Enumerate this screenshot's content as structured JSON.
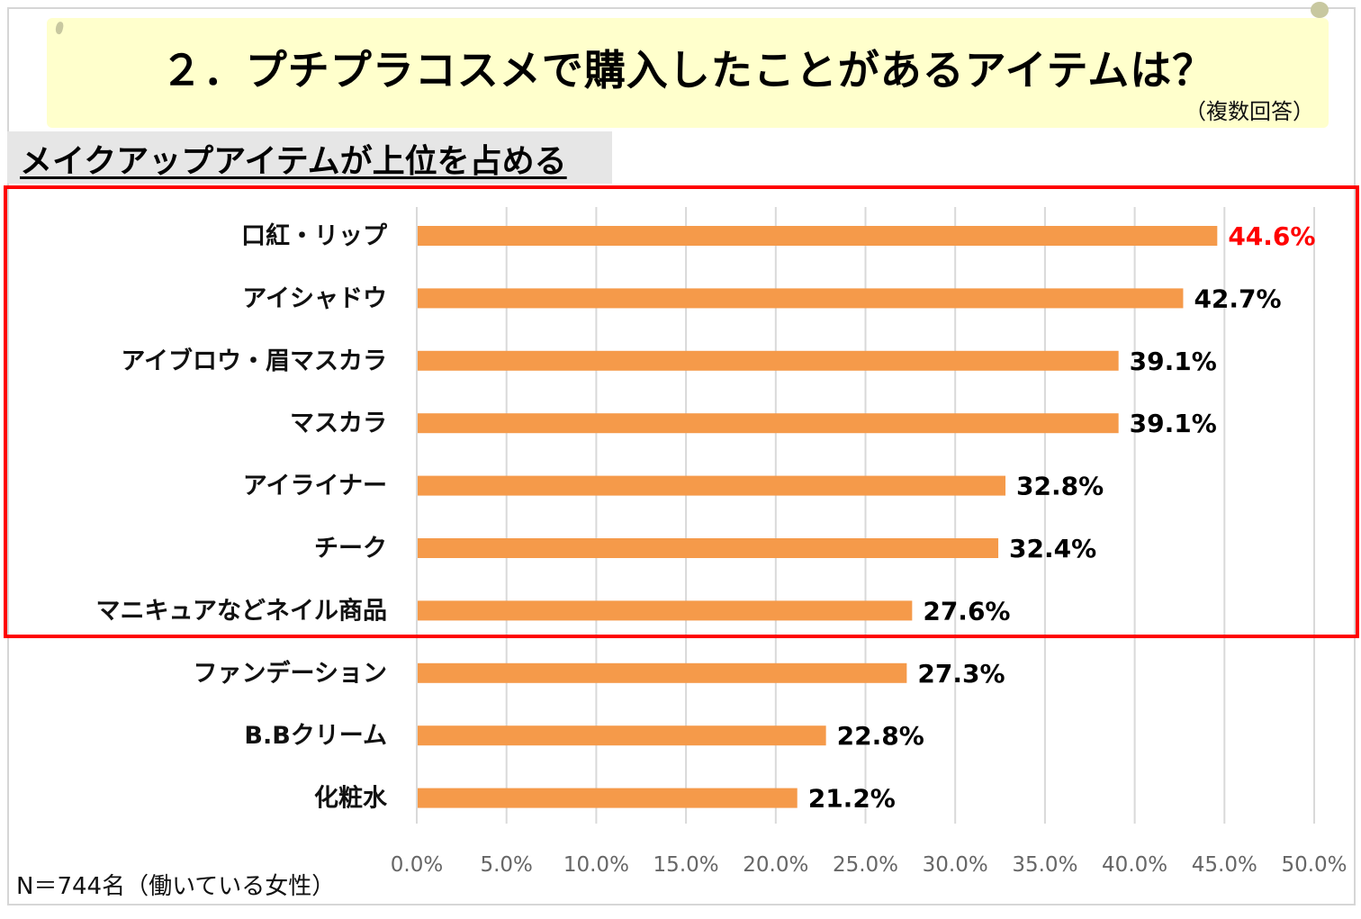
{
  "header": {
    "title": "２．プチプラコスメで購入したことがあるアイテムは？",
    "note": "（複数回答）"
  },
  "subtitle": "メイクアップアイテムが上位を占める",
  "footnote": "N＝744名（働いている女性）",
  "colors": {
    "bar": "#f59a4a",
    "highlight_label": "#ff0000",
    "highlight_box": "#ff0000",
    "grid": "#d9d9d9",
    "banner": "#ffffcc"
  },
  "chart_data": {
    "type": "bar",
    "orientation": "horizontal",
    "title": "２．プチプラコスメで購入したことがあるアイテムは？",
    "subtitle": "メイクアップアイテムが上位を占める",
    "xlabel": "",
    "ylabel": "",
    "xlim": [
      0,
      50
    ],
    "grid": true,
    "legend": "none",
    "categories": [
      "口紅・リップ",
      "アイシャドウ",
      "アイブロウ・眉マスカラ",
      "マスカラ",
      "アイライナー",
      "チーク",
      "マニキュアなどネイル商品",
      "ファンデーション",
      "B.Bクリーム",
      "化粧水"
    ],
    "values": [
      44.6,
      42.7,
      39.1,
      39.1,
      32.8,
      32.4,
      27.6,
      27.3,
      22.8,
      21.2
    ],
    "value_labels": [
      "44.6%",
      "42.7%",
      "39.1%",
      "39.1%",
      "32.8%",
      "32.4%",
      "27.6%",
      "27.3%",
      "22.8%",
      "21.2%"
    ],
    "highlighted_index": 0,
    "highlighted_group": [
      0,
      1,
      2,
      3,
      4,
      5,
      6
    ],
    "ticks": [
      0,
      5,
      10,
      15,
      20,
      25,
      30,
      35,
      40,
      45,
      50
    ],
    "tick_labels": [
      "0.0%",
      "5.0%",
      "10.0%",
      "15.0%",
      "20.0%",
      "25.0%",
      "30.0%",
      "35.0%",
      "40.0%",
      "45.0%",
      "50.0%"
    ]
  }
}
